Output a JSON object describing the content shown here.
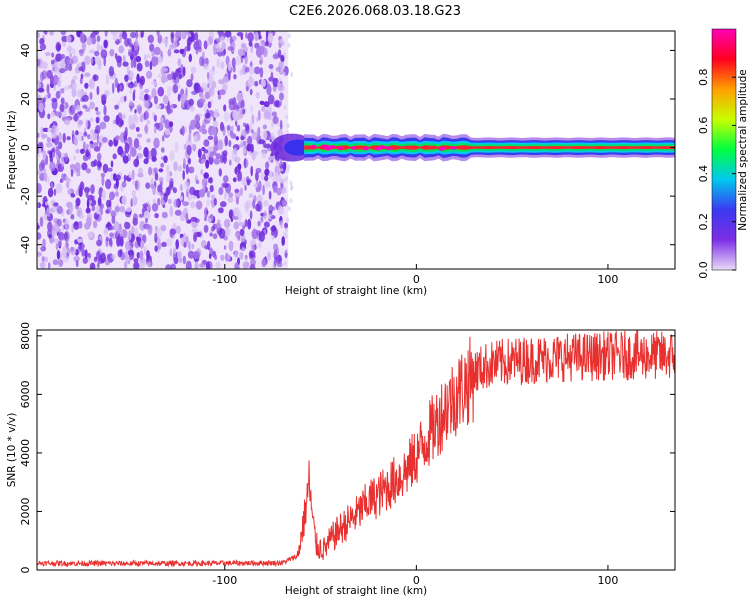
{
  "title": "C2E6.2026.068.03.18.G23",
  "chart_data": [
    {
      "type": "heatmap",
      "xlabel": "Height of straight line (km)",
      "ylabel": "Frequency (Hz)",
      "xlim": [
        -198,
        135
      ],
      "ylim": [
        -50,
        48
      ],
      "xticks": [
        -100,
        0,
        100
      ],
      "yticks": [
        -40,
        -20,
        0,
        20,
        40
      ],
      "noise_region_x": [
        -198,
        -70
      ],
      "signal_region_x": [
        -70,
        135
      ],
      "signal_center_freq_hz": 0,
      "colorbar": {
        "label": "Normalized spectral amplitude",
        "range": [
          0,
          1
        ],
        "ticks": [
          0.0,
          0.2,
          0.4,
          0.6,
          0.8
        ],
        "colors": [
          "#e8dcf6",
          "#7d2fe6",
          "#3a3af0",
          "#00c8f0",
          "#00ff40",
          "#c8ff00",
          "#ffa000",
          "#ff0020",
          "#ff00b4"
        ]
      }
    },
    {
      "type": "line",
      "xlabel": "Height of straight line (km)",
      "ylabel": "SNR (10 * v/v)",
      "xlim": [
        -198,
        135
      ],
      "ylim": [
        0,
        8200
      ],
      "xticks": [
        -100,
        0,
        100
      ],
      "yticks": [
        0,
        2000,
        4000,
        6000,
        8000
      ],
      "color": "#e8302f",
      "x": [
        -198,
        -150,
        -100,
        -70,
        -62,
        -58,
        -56,
        -54,
        -52,
        -48,
        -44,
        -40,
        -35,
        -30,
        -25,
        -20,
        -15,
        -10,
        -5,
        0,
        5,
        10,
        15,
        20,
        25,
        30,
        35,
        40,
        50,
        60,
        70,
        80,
        90,
        100,
        110,
        120,
        130,
        135
      ],
      "y": [
        250,
        240,
        250,
        260,
        500,
        2100,
        3200,
        1700,
        900,
        800,
        1200,
        1500,
        1800,
        2100,
        2500,
        2700,
        3000,
        3300,
        3600,
        4100,
        4700,
        5200,
        5800,
        6200,
        6600,
        6900,
        7100,
        7200,
        7300,
        7350,
        7400,
        7450,
        7450,
        7500,
        7500,
        7500,
        7500,
        7500
      ]
    }
  ]
}
